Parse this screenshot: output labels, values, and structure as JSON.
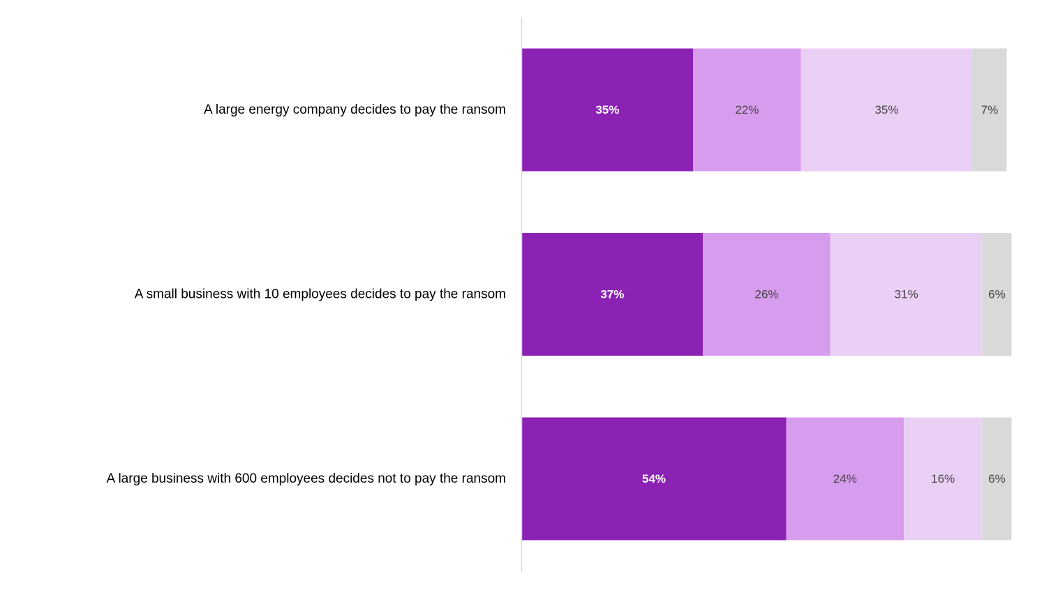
{
  "chart_data": {
    "type": "bar",
    "orientation": "horizontal",
    "stacked": true,
    "categories": [
      "A large energy company decides to pay the ransom",
      "A small business with 10 employees decides to pay the ransom",
      "A large business with 600 employees decides not to pay the ransom"
    ],
    "series": [
      {
        "values": [
          35,
          37,
          54
        ],
        "color": "#8b22b4",
        "label_color": "#ffffff",
        "label_bold": true
      },
      {
        "values": [
          22,
          26,
          24
        ],
        "color": "#d89cee",
        "label_color": "#444444",
        "label_bold": false
      },
      {
        "values": [
          35,
          31,
          16
        ],
        "color": "#ebd0f5",
        "label_color": "#444444",
        "label_bold": false
      },
      {
        "values": [
          7,
          6,
          6
        ],
        "color": "#d9d9d9",
        "label_color": "#444444",
        "label_bold": false
      }
    ],
    "data_labels": [
      [
        "35%",
        "37%",
        "54%"
      ],
      [
        "22%",
        "26%",
        "24%"
      ],
      [
        "35%",
        "31%",
        "16%"
      ],
      [
        "7%",
        "6%",
        "6%"
      ]
    ],
    "xlim": [
      0,
      100
    ],
    "axis_color": "#d9d9d9",
    "grid": false,
    "legend": "none"
  }
}
